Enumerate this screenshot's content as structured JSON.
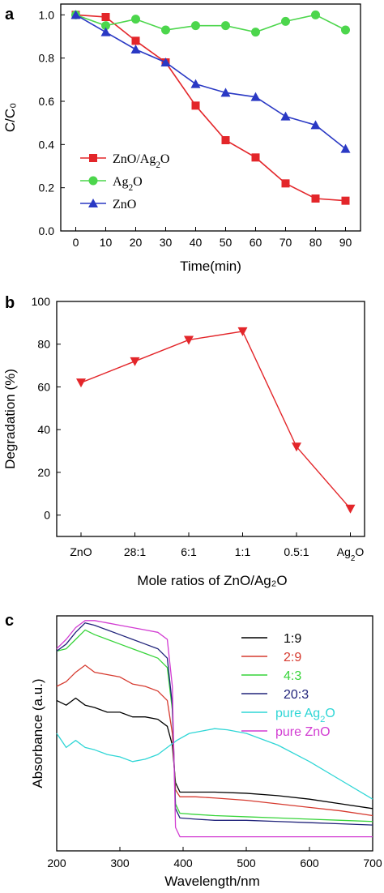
{
  "chart_data": [
    {
      "panel": "a",
      "type": "line",
      "xlabel": "Time(min)",
      "ylabel": "C/C₀",
      "xlim": [
        -5,
        95
      ],
      "ylim": [
        0.0,
        1.05
      ],
      "xticks": [
        0,
        10,
        20,
        30,
        40,
        50,
        60,
        70,
        80,
        90
      ],
      "yticks": [
        "0.0",
        "0.2",
        "0.4",
        "0.6",
        "0.8",
        "1.0"
      ],
      "x": [
        0,
        10,
        20,
        30,
        40,
        50,
        60,
        70,
        80,
        90
      ],
      "legend_position": "bottom-left",
      "series": [
        {
          "name": "ZnO/Ag₂O",
          "marker": "square",
          "color": "#e3262a",
          "values": [
            1.0,
            0.99,
            0.88,
            0.78,
            0.58,
            0.42,
            0.34,
            0.22,
            0.15,
            0.14
          ]
        },
        {
          "name": "Ag₂O",
          "marker": "circle",
          "color": "#4cd64c",
          "values": [
            1.0,
            0.95,
            0.98,
            0.93,
            0.95,
            0.95,
            0.92,
            0.97,
            1.0,
            0.93
          ]
        },
        {
          "name": "ZnO",
          "marker": "triangle-up",
          "color": "#2a39c4",
          "values": [
            1.0,
            0.92,
            0.84,
            0.78,
            0.68,
            0.64,
            0.62,
            0.53,
            0.49,
            0.38
          ]
        }
      ]
    },
    {
      "panel": "b",
      "type": "line",
      "xlabel": "Mole ratios of ZnO/Ag₂O",
      "ylabel": "Degradation (%)",
      "ylim": [
        -10,
        100
      ],
      "yticks": [
        "0",
        "20",
        "40",
        "60",
        "80",
        "100"
      ],
      "categories": [
        "ZnO",
        "28:1",
        "6:1",
        "1:1",
        "0.5:1",
        "Ag₂O"
      ],
      "series": [
        {
          "marker": "triangle-down",
          "color": "#e3262a",
          "values": [
            62,
            72,
            82,
            86,
            32,
            3
          ]
        }
      ]
    },
    {
      "panel": "c",
      "type": "line",
      "xlabel": "Wavelength/nm",
      "ylabel": "Absorbance (a.u.)",
      "xlim": [
        200,
        700
      ],
      "xticks": [
        200,
        300,
        400,
        500,
        600,
        700
      ],
      "y_tick_labels": false,
      "legend_position": "top-right",
      "series": [
        {
          "name": "1:9",
          "color": "#000000",
          "x": [
            200,
            215,
            230,
            245,
            260,
            280,
            300,
            320,
            340,
            360,
            375,
            383,
            388,
            395,
            420,
            450,
            500,
            550,
            600,
            650,
            700
          ],
          "values": [
            0.64,
            0.62,
            0.65,
            0.62,
            0.61,
            0.59,
            0.59,
            0.57,
            0.57,
            0.56,
            0.53,
            0.45,
            0.29,
            0.25,
            0.25,
            0.25,
            0.245,
            0.235,
            0.22,
            0.2,
            0.18
          ]
        },
        {
          "name": "2:9",
          "color": "#d63a2f",
          "x": [
            200,
            215,
            230,
            245,
            260,
            280,
            300,
            320,
            340,
            360,
            375,
            383,
            388,
            395,
            420,
            450,
            500,
            550,
            600,
            650,
            700
          ],
          "values": [
            0.7,
            0.72,
            0.76,
            0.79,
            0.76,
            0.75,
            0.74,
            0.71,
            0.7,
            0.68,
            0.64,
            0.5,
            0.26,
            0.23,
            0.23,
            0.225,
            0.215,
            0.2,
            0.185,
            0.17,
            0.15
          ]
        },
        {
          "name": "4:3",
          "color": "#37d43a",
          "x": [
            200,
            215,
            230,
            245,
            260,
            280,
            300,
            320,
            340,
            360,
            375,
            383,
            388,
            395,
            420,
            450,
            500,
            550,
            600,
            650,
            700
          ],
          "values": [
            0.85,
            0.86,
            0.9,
            0.94,
            0.92,
            0.9,
            0.88,
            0.86,
            0.84,
            0.82,
            0.78,
            0.6,
            0.2,
            0.16,
            0.155,
            0.15,
            0.145,
            0.14,
            0.135,
            0.13,
            0.125
          ]
        },
        {
          "name": "20:3",
          "color": "#20237a",
          "x": [
            200,
            215,
            230,
            245,
            260,
            280,
            300,
            320,
            340,
            360,
            375,
            383,
            388,
            395,
            420,
            450,
            500,
            550,
            600,
            650,
            700
          ],
          "values": [
            0.85,
            0.88,
            0.93,
            0.97,
            0.96,
            0.94,
            0.92,
            0.9,
            0.88,
            0.86,
            0.82,
            0.62,
            0.18,
            0.14,
            0.135,
            0.13,
            0.13,
            0.125,
            0.12,
            0.115,
            0.11
          ]
        },
        {
          "name": "pure Ag₂O",
          "color": "#2fd6d6",
          "x": [
            200,
            215,
            230,
            245,
            260,
            280,
            300,
            320,
            340,
            360,
            375,
            390,
            410,
            430,
            450,
            470,
            500,
            550,
            600,
            650,
            700
          ],
          "values": [
            0.5,
            0.44,
            0.47,
            0.44,
            0.43,
            0.41,
            0.4,
            0.38,
            0.39,
            0.41,
            0.44,
            0.47,
            0.5,
            0.51,
            0.52,
            0.515,
            0.5,
            0.45,
            0.38,
            0.3,
            0.22
          ]
        },
        {
          "name": "pure ZnO",
          "color": "#d23cd2",
          "x": [
            200,
            215,
            230,
            245,
            260,
            280,
            300,
            320,
            340,
            360,
            375,
            383,
            388,
            395,
            420,
            450,
            500,
            550,
            600,
            650,
            700
          ],
          "values": [
            0.86,
            0.9,
            0.95,
            0.98,
            0.98,
            0.97,
            0.96,
            0.95,
            0.94,
            0.93,
            0.9,
            0.7,
            0.1,
            0.06,
            0.06,
            0.06,
            0.06,
            0.06,
            0.06,
            0.06,
            0.06
          ]
        }
      ]
    }
  ]
}
